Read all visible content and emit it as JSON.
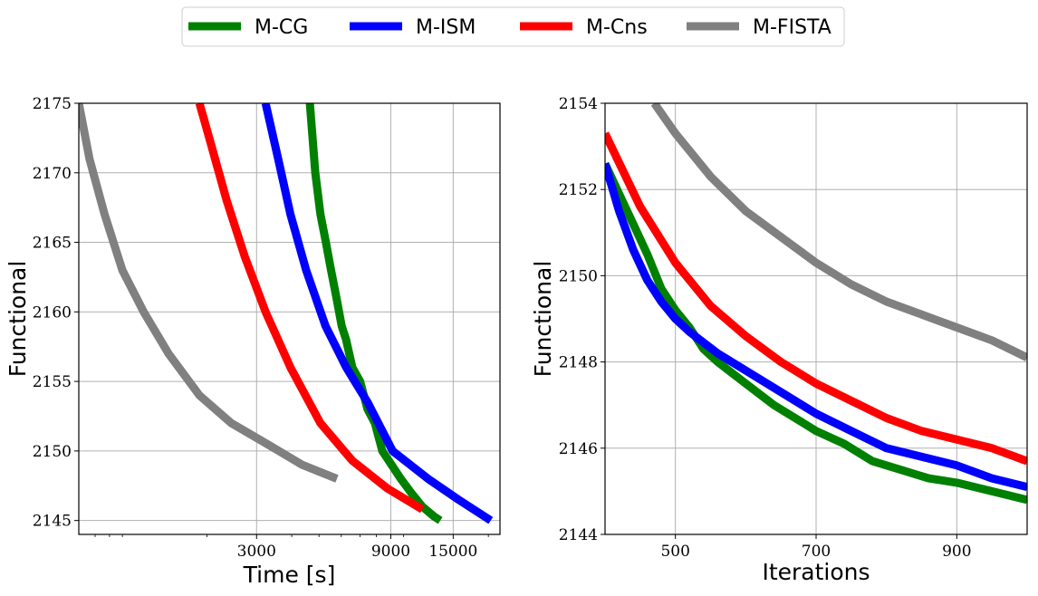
{
  "legend": {
    "placement": "top-center",
    "entries": [
      {
        "label": "M-CG",
        "color": "#008000"
      },
      {
        "label": "M-ISM",
        "color": "#0000ff"
      },
      {
        "label": "M-Cns",
        "color": "#ff0000"
      },
      {
        "label": "M-FISTA",
        "color": "#808080"
      }
    ]
  },
  "chart_data": [
    {
      "type": "line",
      "xlabel": "Time [s]",
      "ylabel": "Functional",
      "xscale": "log",
      "xlim": [
        700,
        22000
      ],
      "ylim": [
        2144,
        2175
      ],
      "xticks": [
        3000,
        9000,
        15000
      ],
      "xtick_labels": [
        "3000",
        "9000",
        "15000"
      ],
      "yticks": [
        2145,
        2150,
        2155,
        2160,
        2165,
        2170,
        2175
      ],
      "ytick_labels": [
        "2145",
        "2150",
        "2155",
        "2160",
        "2165",
        "2170",
        "2175"
      ],
      "grid": true,
      "series": [
        {
          "name": "M-CG",
          "color": "#008000",
          "x": [
            4640,
            4850,
            5060,
            5290,
            5520,
            5770,
            6020,
            6240,
            6570,
            7000,
            7440,
            7900,
            8400,
            9060,
            9770,
            10630,
            11650,
            12800,
            13500
          ],
          "y": [
            2175,
            2170,
            2167,
            2165,
            2163,
            2161,
            2159,
            2158,
            2156,
            2155,
            2153,
            2152,
            2150,
            2149,
            2148,
            2147,
            2146,
            2145.3,
            2145
          ]
        },
        {
          "name": "M-ISM",
          "color": "#0000ff",
          "x": [
            3230,
            3580,
            3960,
            4500,
            5270,
            6250,
            7440,
            9140,
            12210,
            15660,
            20400
          ],
          "y": [
            2175,
            2171,
            2167,
            2163,
            2159,
            2156,
            2153.5,
            2150,
            2148,
            2146.5,
            2145
          ]
        },
        {
          "name": "M-Cns",
          "color": "#ff0000",
          "x": [
            1880,
            2070,
            2350,
            2720,
            3230,
            3960,
            5060,
            6570,
            8760,
            11650
          ],
          "y": [
            2175,
            2172,
            2168,
            2164,
            2160,
            2156,
            2152,
            2149.3,
            2147.3,
            2145.8
          ]
        },
        {
          "name": "M-FISTA",
          "color": "#808080",
          "x": [
            700,
            764,
            865,
            1000,
            1190,
            1460,
            1880,
            2440,
            3270,
            4360,
            5790
          ],
          "y": [
            2175,
            2171,
            2167,
            2163,
            2160,
            2157,
            2154,
            2152,
            2150.5,
            2149,
            2148
          ]
        }
      ]
    },
    {
      "type": "line",
      "xlabel": "Iterations",
      "ylabel": "Functional",
      "xlim": [
        400,
        1000
      ],
      "ylim": [
        2144,
        2154
      ],
      "xticks": [
        500,
        700,
        900
      ],
      "xtick_labels": [
        "500",
        "700",
        "900"
      ],
      "yticks": [
        2144,
        2146,
        2148,
        2150,
        2152,
        2154
      ],
      "ytick_labels": [
        "2144",
        "2146",
        "2148",
        "2150",
        "2152",
        "2154"
      ],
      "grid": true,
      "series": [
        {
          "name": "M-CG",
          "color": "#008000",
          "x": [
            400,
            420,
            440,
            460,
            480,
            500,
            520,
            540,
            560,
            600,
            640,
            680,
            700,
            740,
            780,
            820,
            860,
            900,
            950,
            1000
          ],
          "y": [
            2152.6,
            2151.9,
            2151.2,
            2150.5,
            2149.7,
            2149.2,
            2148.8,
            2148.3,
            2148.0,
            2147.5,
            2147.0,
            2146.6,
            2146.4,
            2146.1,
            2145.7,
            2145.5,
            2145.3,
            2145.2,
            2145.0,
            2144.8
          ]
        },
        {
          "name": "M-ISM",
          "color": "#0000ff",
          "x": [
            400,
            420,
            440,
            460,
            480,
            500,
            520,
            560,
            600,
            650,
            700,
            750,
            800,
            850,
            900,
            950,
            1000
          ],
          "y": [
            2152.6,
            2151.5,
            2150.6,
            2149.9,
            2149.4,
            2149.0,
            2148.7,
            2148.2,
            2147.8,
            2147.3,
            2146.8,
            2146.4,
            2146.0,
            2145.8,
            2145.6,
            2145.3,
            2145.1
          ]
        },
        {
          "name": "M-Cns",
          "color": "#ff0000",
          "x": [
            400,
            450,
            500,
            550,
            600,
            650,
            700,
            750,
            800,
            850,
            900,
            950,
            1000
          ],
          "y": [
            2153.3,
            2151.6,
            2150.3,
            2149.3,
            2148.6,
            2148.0,
            2147.5,
            2147.1,
            2146.7,
            2146.4,
            2146.2,
            2146.0,
            2145.7
          ]
        },
        {
          "name": "M-FISTA",
          "color": "#808080",
          "x": [
            470,
            500,
            550,
            600,
            650,
            700,
            750,
            800,
            850,
            900,
            950,
            1000
          ],
          "y": [
            2154.0,
            2153.3,
            2152.3,
            2151.5,
            2150.9,
            2150.3,
            2149.8,
            2149.4,
            2149.1,
            2148.8,
            2148.5,
            2148.1
          ]
        }
      ]
    }
  ]
}
